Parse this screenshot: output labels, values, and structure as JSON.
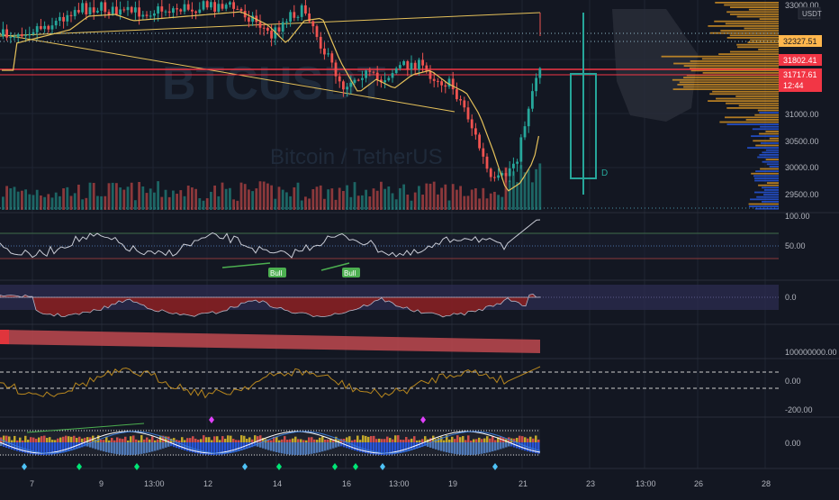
{
  "colors": {
    "background": "#131722",
    "grid": "#1f2433",
    "up": "#26a69a",
    "down": "#ef5350",
    "ma": "#e5c15a",
    "axis_text": "#b2b5be",
    "price_label_bg": "#ffb74d",
    "red_label_bg": "#f23645",
    "volume_profile": "#f5a623",
    "volume_profile_blue": "#2962ff"
  },
  "watermark": {
    "symbol": "BTCUSDT",
    "pair": "Bitcoin / TetherUS"
  },
  "price_axis": {
    "currency": "USDT",
    "ticks": [
      "33000.00",
      "31000.00",
      "30500.00",
      "30000.00",
      "29500.00"
    ],
    "labels": {
      "high": "32327.51",
      "current": "31802.41",
      "current2": "31717.61",
      "countdown": "12:44"
    }
  },
  "rsi_axis": {
    "ticks": [
      "100.00",
      "50.00"
    ]
  },
  "rsi_labels": [
    "Bull",
    "Bull"
  ],
  "pane3_axis": {
    "ticks": [
      "0.0"
    ]
  },
  "pane4_axis": {
    "ticks": [
      "100000000.00"
    ]
  },
  "pane5_axis": {
    "ticks": [
      "0.00",
      "-200.00"
    ]
  },
  "pane6_axis": {
    "ticks": [
      "0.00"
    ]
  },
  "candle_note": "D",
  "time_axis": {
    "labels": [
      "7",
      "9",
      "13:00",
      "12",
      "14",
      "16",
      "13:00",
      "19",
      "21",
      "23",
      "13:00",
      "26",
      "28"
    ]
  }
}
